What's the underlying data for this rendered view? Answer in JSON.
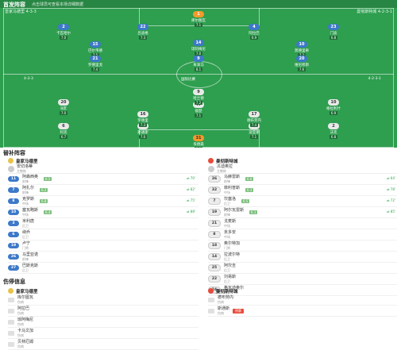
{
  "header": {
    "title": "首发阵容",
    "subtitle": "点击球员可查看本场详细数据"
  },
  "home_team": {
    "name": "皇家马德里",
    "formation": "4-3-3",
    "rating": "7.2"
  },
  "away_team": {
    "name": "曼彻斯特城",
    "formation": "4-2-3-1",
    "rating": "7.0"
  },
  "pitch_mid": {
    "left": "4-3-3",
    "center": "国际比赛",
    "right": "4-2-3-1"
  },
  "home_players": [
    {
      "num": "1",
      "name": "库尔图瓦",
      "rating": "7.1",
      "gk": true
    },
    {
      "num": "2",
      "name": "卡瓦哈尔",
      "rating": "7.0",
      "ev": ""
    },
    {
      "num": "22",
      "name": "吕迪格",
      "rating": "7.3",
      "ev": ""
    },
    {
      "num": "4",
      "name": "阿拉巴",
      "rating": "6.9",
      "ev": ""
    },
    {
      "num": "23",
      "name": "门迪",
      "rating": "6.8",
      "ev": ""
    },
    {
      "num": "15",
      "name": "巴尔韦德",
      "rating": "7.5",
      "ev": ""
    },
    {
      "num": "14",
      "name": "琼阿梅尼",
      "rating": "7.0",
      "ev": ""
    },
    {
      "num": "10",
      "name": "莫德里奇",
      "rating": "7.2",
      "ev": ""
    },
    {
      "num": "21",
      "name": "罗德里戈",
      "rating": "7.4",
      "ev": ""
    },
    {
      "num": "9",
      "name": "本泽马",
      "rating": "8.1",
      "ev": ""
    },
    {
      "num": "20",
      "name": "维尼修斯",
      "rating": "7.6",
      "ev": ""
    }
  ],
  "away_players": [
    {
      "num": "31",
      "name": "埃德森",
      "rating": "6.9",
      "gk": true
    },
    {
      "num": "2",
      "name": "沃克",
      "rating": "6.8",
      "ev": ""
    },
    {
      "num": "3",
      "name": "迪亚斯",
      "rating": "7.1",
      "ev": ""
    },
    {
      "num": "5",
      "name": "斯通斯",
      "rating": "7.0",
      "ev": ""
    },
    {
      "num": "6",
      "name": "阿克",
      "rating": "6.7",
      "ev": ""
    },
    {
      "num": "16",
      "name": "罗德里",
      "rating": "7.3",
      "ev": ""
    },
    {
      "num": "17",
      "name": "德布劳内",
      "rating": "7.4",
      "ev": ""
    },
    {
      "num": "20",
      "name": "B席",
      "rating": "7.0",
      "ev": ""
    },
    {
      "num": "47",
      "name": "福登",
      "rating": "7.1",
      "ev": ""
    },
    {
      "num": "10",
      "name": "格拉利什",
      "rating": "6.9",
      "ev": ""
    },
    {
      "num": "9",
      "name": "哈兰德",
      "rating": "7.2",
      "ev": ""
    }
  ],
  "subs": {
    "title": "替补阵容",
    "home": {
      "club": "皇家马德里",
      "coach_name": "安切洛蒂",
      "coach_label": "主教练",
      "players": [
        {
          "num": "11",
          "name": "阿森西奥",
          "pos": "前锋",
          "rate": "6.5",
          "time": "70'"
        },
        {
          "num": "7",
          "name": "阿扎尔",
          "pos": "前锋",
          "rate": "6.2",
          "time": "82'"
        },
        {
          "num": "8",
          "name": "克罗斯",
          "pos": "中场",
          "rate": "6.8",
          "time": "75'"
        },
        {
          "num": "10",
          "name": "塞瓦略斯",
          "pos": "中场",
          "rate": "6.4",
          "time": "88'"
        },
        {
          "num": "3",
          "name": "米利唐",
          "pos": "后卫",
          "rate": "",
          "time": ""
        },
        {
          "num": "6",
          "name": "纳乔",
          "pos": "后卫",
          "rate": "",
          "time": ""
        },
        {
          "num": "19",
          "name": "卢宁",
          "pos": "门将",
          "rate": "",
          "time": ""
        },
        {
          "num": "26",
          "name": "马里亚诺",
          "pos": "前锋",
          "rate": "",
          "time": ""
        },
        {
          "num": "27",
          "name": "巴斯克斯",
          "pos": "后卫",
          "rate": "",
          "time": ""
        }
      ]
    },
    "away": {
      "club": "曼彻斯特城",
      "coach_name": "瓜迪奥拉",
      "coach_label": "主教练",
      "players": [
        {
          "num": "26",
          "name": "马赫雷斯",
          "pos": "前锋",
          "rate": "6.6",
          "time": "64'"
        },
        {
          "num": "32",
          "name": "菲利普斯",
          "pos": "中场",
          "rate": "6.3",
          "time": "78'"
        },
        {
          "num": "7",
          "name": "坎塞洛",
          "pos": "后卫",
          "rate": "6.5",
          "time": "72'"
        },
        {
          "num": "19",
          "name": "阿尔瓦雷斯",
          "pos": "前锋",
          "rate": "6.1",
          "time": "85'"
        },
        {
          "num": "21",
          "name": "戈麦斯",
          "pos": "中场",
          "rate": "",
          "time": ""
        },
        {
          "num": "8",
          "name": "京多安",
          "pos": "中场",
          "rate": "",
          "time": ""
        },
        {
          "num": "18",
          "name": "奥尔特加",
          "pos": "门将",
          "rate": "",
          "time": ""
        },
        {
          "num": "14",
          "name": "拉波尔特",
          "pos": "后卫",
          "rate": "",
          "time": ""
        },
        {
          "num": "25",
          "name": "阿坎吉",
          "pos": "后卫",
          "rate": "",
          "time": ""
        },
        {
          "num": "22",
          "name": "刘易斯",
          "pos": "后卫",
          "rate": "",
          "time": ""
        },
        {
          "num": "24",
          "name": "格瓦迪奥尔",
          "pos": "后卫",
          "rate": "",
          "time": ""
        }
      ]
    }
  },
  "injuries": {
    "title": "伤停信息",
    "home": {
      "club": "皇家马德里",
      "players": [
        {
          "name": "库尔图瓦",
          "pos": "伤病"
        },
        {
          "name": "阿拉巴",
          "pos": "伤病"
        },
        {
          "name": "琼阿梅尼",
          "pos": "伤病"
        },
        {
          "name": "卡马文加",
          "pos": "伤病"
        },
        {
          "name": "贝林厄姆",
          "pos": "伤病"
        }
      ]
    },
    "away": {
      "club": "曼彻斯特城",
      "players": [
        {
          "name": "德布劳内",
          "pos": "伤病",
          "tag": ""
        },
        {
          "name": "斯通斯",
          "pos": "伤病",
          "tag": "停赛"
        }
      ]
    }
  },
  "colors": {
    "pitch": "#2e9e4f",
    "home": "#3d79c9",
    "gk": "#f49a2b",
    "sub_time": "#2aa84a"
  }
}
